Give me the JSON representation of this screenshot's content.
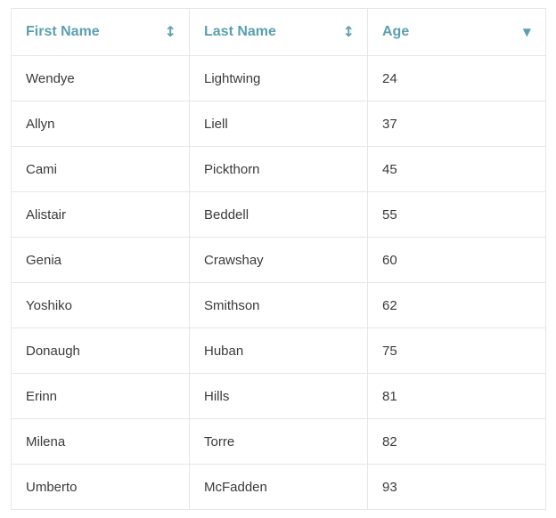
{
  "table": {
    "columns": [
      {
        "label": "First Name",
        "sort_icon": "sort-both-icon"
      },
      {
        "label": "Last Name",
        "sort_icon": "sort-both-icon"
      },
      {
        "label": "Age",
        "sort_icon": "sort-desc-icon"
      }
    ],
    "rows": [
      {
        "first": "Wendye",
        "last": "Lightwing",
        "age": "24"
      },
      {
        "first": "Allyn",
        "last": "Liell",
        "age": "37"
      },
      {
        "first": "Cami",
        "last": "Pickthorn",
        "age": "45"
      },
      {
        "first": "Alistair",
        "last": "Beddell",
        "age": "55"
      },
      {
        "first": "Genia",
        "last": "Crawshay",
        "age": "60"
      },
      {
        "first": "Yoshiko",
        "last": "Smithson",
        "age": "62"
      },
      {
        "first": "Donaugh",
        "last": "Huban",
        "age": "75"
      },
      {
        "first": "Erinn",
        "last": "Hills",
        "age": "81"
      },
      {
        "first": "Milena",
        "last": "Torre",
        "age": "82"
      },
      {
        "first": "Umberto",
        "last": "McFadden",
        "age": "93"
      }
    ]
  },
  "colors": {
    "header_text": "#5aa0ad",
    "cell_text": "#3a3a3a",
    "border": "#e6e6e6"
  }
}
